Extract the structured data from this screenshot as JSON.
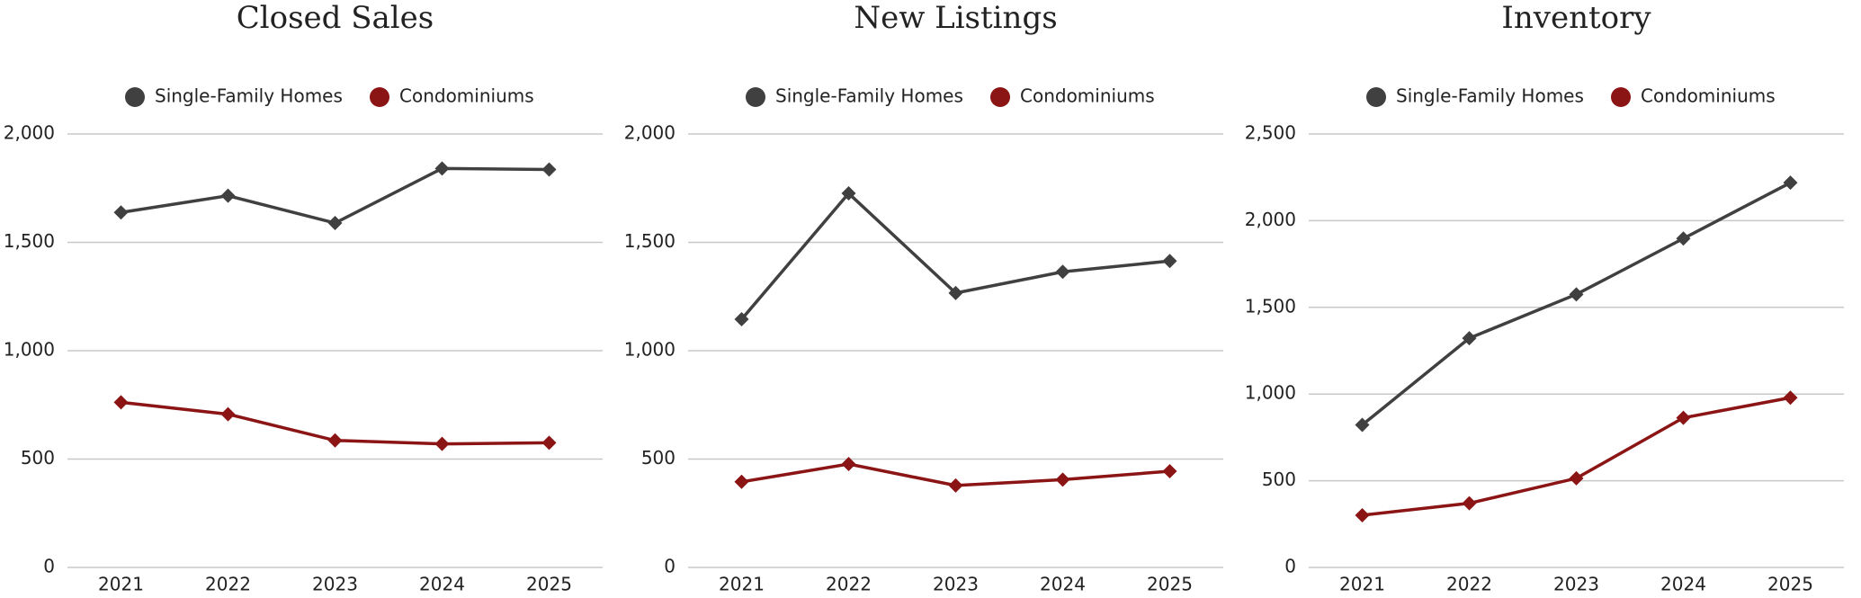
{
  "chart_data": [
    {
      "type": "line",
      "title": "Closed Sales",
      "categories": [
        "2021",
        "2022",
        "2023",
        "2024",
        "2025"
      ],
      "series": [
        {
          "name": "Single-Family Homes",
          "color": "#404040",
          "values": [
            1638,
            1715,
            1589,
            1841,
            1836
          ]
        },
        {
          "name": "Condominiums",
          "color": "#8b1414",
          "values": [
            762,
            707,
            586,
            570,
            575
          ]
        }
      ],
      "ylim": [
        0,
        2000
      ],
      "yticks": [
        0,
        500,
        {
          "value": 1000,
          "label": "1,000"
        },
        {
          "value": 1500,
          "label": "1,500"
        },
        {
          "value": 2000,
          "label": "2,000"
        }
      ],
      "grid": true
    },
    {
      "type": "line",
      "title": "New Listings",
      "categories": [
        "2021",
        "2022",
        "2023",
        "2024",
        "2025"
      ],
      "series": [
        {
          "name": "Single-Family Homes",
          "color": "#404040",
          "values": [
            1145,
            1726,
            1266,
            1364,
            1414
          ]
        },
        {
          "name": "Condominiums",
          "color": "#8b1414",
          "values": [
            395,
            477,
            378,
            405,
            444
          ]
        }
      ],
      "ylim": [
        0,
        2000
      ],
      "yticks": [
        0,
        500,
        {
          "value": 1000,
          "label": "1,000"
        },
        {
          "value": 1500,
          "label": "1,500"
        },
        {
          "value": 2000,
          "label": "2,000"
        }
      ],
      "grid": true
    },
    {
      "type": "line",
      "title": "Inventory",
      "categories": [
        "2021",
        "2022",
        "2023",
        "2024",
        "2025"
      ],
      "series": [
        {
          "name": "Single-Family Homes",
          "color": "#404040",
          "values": [
            822,
            1322,
            1575,
            1897,
            2219
          ]
        },
        {
          "name": "Condominiums",
          "color": "#8b1414",
          "values": [
            301,
            370,
            514,
            863,
            979
          ]
        }
      ],
      "ylim": [
        0,
        2500
      ],
      "yticks": [
        0,
        500,
        {
          "value": 1000,
          "label": "1,000"
        },
        {
          "value": 1500,
          "label": "1,500"
        },
        {
          "value": 2000,
          "label": "2,000"
        },
        {
          "value": 2500,
          "label": "2,500"
        }
      ],
      "grid": true
    }
  ]
}
